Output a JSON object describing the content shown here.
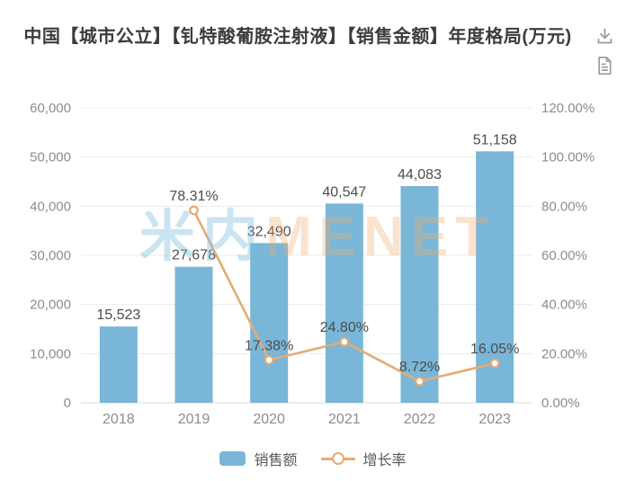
{
  "header": {
    "title": "中国【城市公立】【钆特酸葡胺注射液】【销售金额】年度格局(万元)",
    "icons": [
      {
        "name": "download-icon"
      },
      {
        "name": "report-icon"
      }
    ]
  },
  "watermark": {
    "part1": "米内",
    "part2": "MENET"
  },
  "legend": [
    {
      "label": "销售额",
      "type": "bar",
      "color": "#79b6d7"
    },
    {
      "label": "增长率",
      "type": "line",
      "color": "#e4ab74"
    }
  ],
  "colors": {
    "bar": "#79b6d7",
    "line": "#e4ab74",
    "grid": "#ececec",
    "axis_line": "#d9d9d9",
    "tick_text": "#8c8c8c",
    "label_text": "#4d4d4d"
  },
  "chart_data": {
    "type": "bar+line",
    "title": "中国【城市公立】【钆特酸葡胺注射液】【销售金额】年度格局(万元)",
    "categories": [
      "2018",
      "2019",
      "2020",
      "2021",
      "2022",
      "2023"
    ],
    "series": [
      {
        "name": "销售额",
        "type": "bar",
        "axis": "left",
        "color": "#79b6d7",
        "values": [
          15523,
          27678,
          32490,
          40547,
          44083,
          51158
        ],
        "labels": [
          "15,523",
          "27,678",
          "32,490",
          "40,547",
          "44,083",
          "51,158"
        ]
      },
      {
        "name": "增长率",
        "type": "line",
        "axis": "right",
        "color": "#e4ab74",
        "values": [
          null,
          78.31,
          17.38,
          24.8,
          8.72,
          16.05
        ],
        "labels": [
          null,
          "78.31%",
          "17.38%",
          "24.80%",
          "8.72%",
          "16.05%"
        ]
      }
    ],
    "left_axis": {
      "min": 0,
      "max": 60000,
      "step": 10000,
      "tick_labels": [
        "0",
        "10,000",
        "20,000",
        "30,000",
        "40,000",
        "50,000",
        "60,000"
      ]
    },
    "right_axis": {
      "min": 0,
      "max": 120,
      "step": 20,
      "tick_labels": [
        "0.00%",
        "20.00%",
        "40.00%",
        "60.00%",
        "80.00%",
        "100.00%",
        "120.00%"
      ]
    },
    "grid": true,
    "legend_position": "bottom"
  }
}
